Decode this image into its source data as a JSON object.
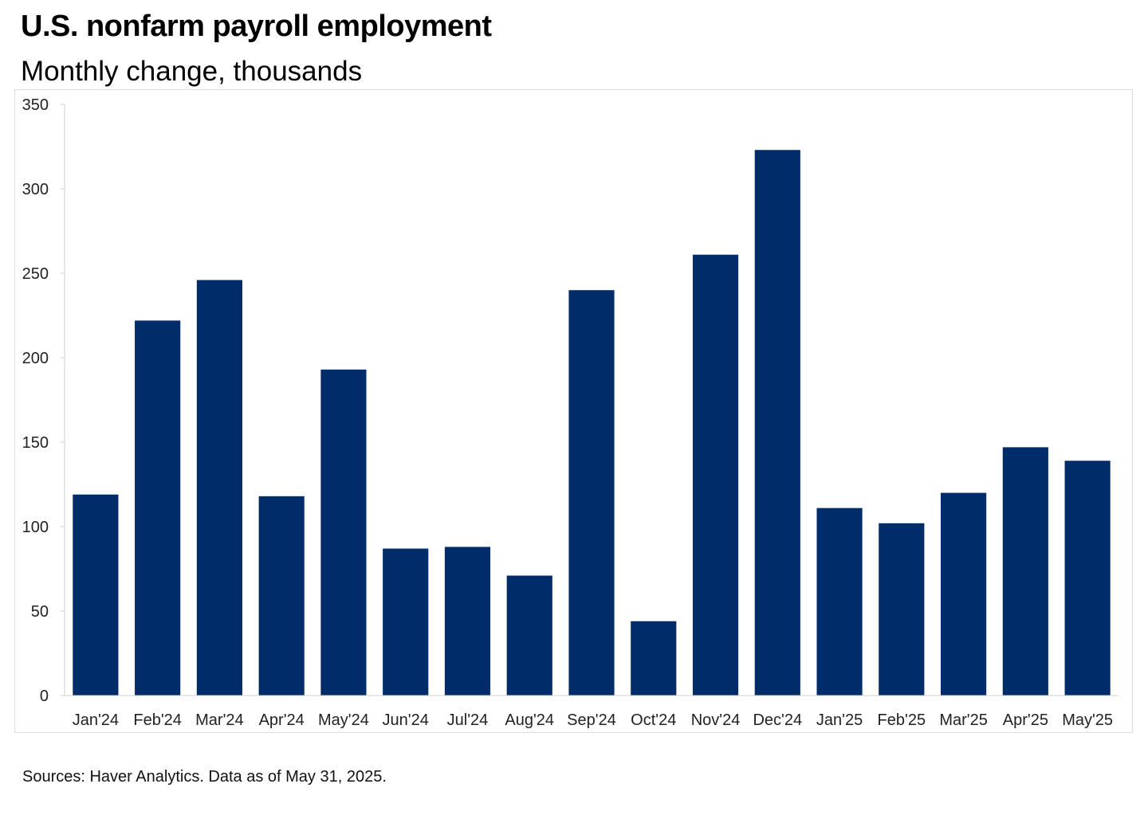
{
  "header": {
    "title": "U.S. nonfarm payroll employment",
    "subtitle": "Monthly change, thousands"
  },
  "footer": {
    "source": "Sources: Haver Analytics. Data as of May 31, 2025."
  },
  "colors": {
    "bar": "#002d6a",
    "axis": "#cfcfcf"
  },
  "chart_data": {
    "type": "bar",
    "title": "U.S. nonfarm payroll employment",
    "subtitle": "Monthly change, thousands",
    "categories": [
      "Jan'24",
      "Feb'24",
      "Mar'24",
      "Apr'24",
      "May'24",
      "Jun'24",
      "Jul'24",
      "Aug'24",
      "Sep'24",
      "Oct'24",
      "Nov'24",
      "Dec'24",
      "Jan'25",
      "Feb'25",
      "Mar'25",
      "Apr'25",
      "May'25"
    ],
    "values": [
      119,
      222,
      246,
      118,
      193,
      87,
      88,
      71,
      240,
      44,
      261,
      323,
      111,
      102,
      120,
      147,
      139
    ],
    "ylim": [
      0,
      350
    ],
    "yticks": [
      0,
      50,
      100,
      150,
      200,
      250,
      300,
      350
    ],
    "xlabel": "",
    "ylabel": "",
    "grid": false,
    "legend": "none"
  }
}
